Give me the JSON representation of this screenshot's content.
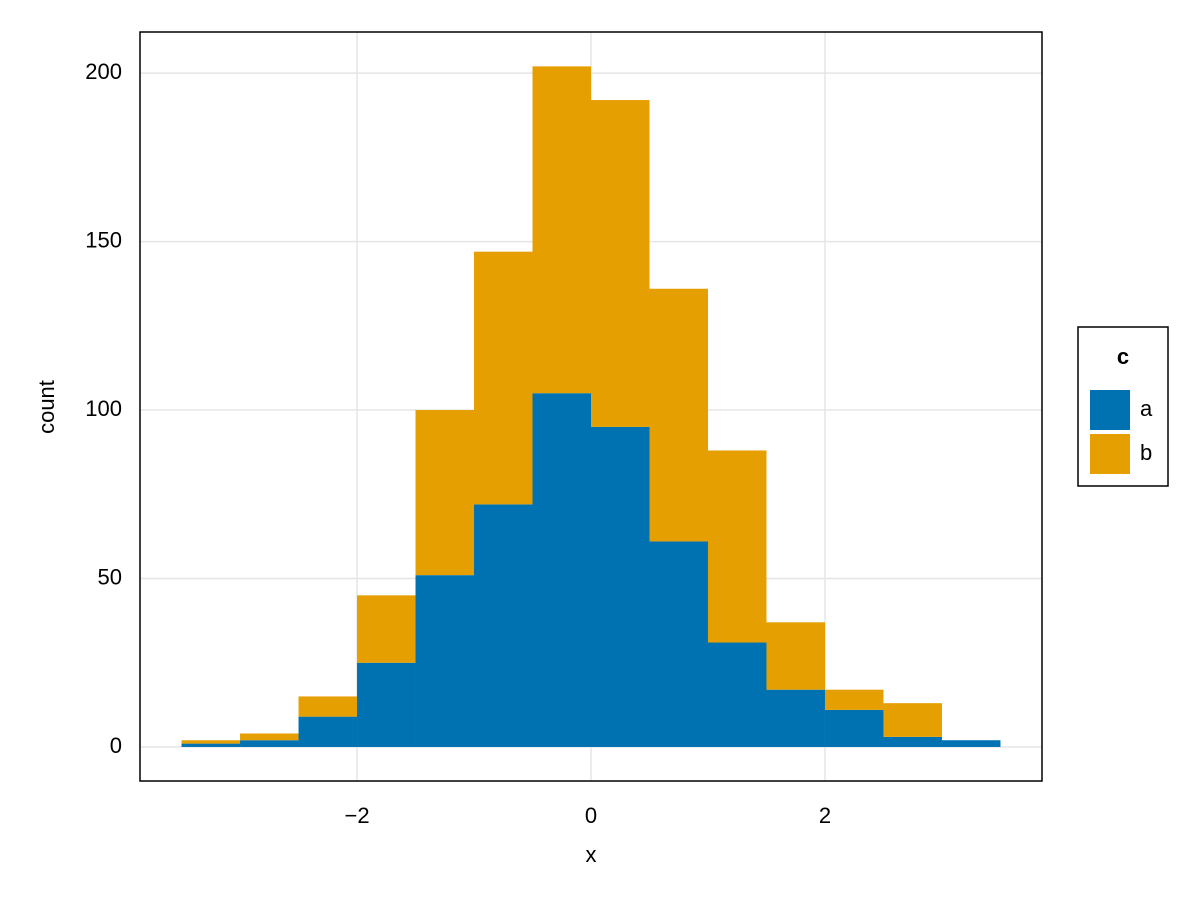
{
  "chart_data": {
    "type": "histogram",
    "stacked": true,
    "xlabel": "x",
    "ylabel": "count",
    "bins": [
      -3.5,
      -3,
      -2.5,
      -2,
      -1.5,
      -1,
      -0.5,
      0,
      0.5,
      1,
      1.5,
      2,
      2.5,
      3,
      3.5
    ],
    "series": [
      {
        "name": "a",
        "color": "#0072b2",
        "values": [
          1,
          2,
          9,
          25,
          51,
          72,
          105,
          95,
          61,
          31,
          17,
          11,
          3,
          2
        ]
      },
      {
        "name": "b",
        "color": "#e69f00",
        "values": [
          1,
          2,
          6,
          20,
          49,
          75,
          97,
          97,
          75,
          57,
          20,
          6,
          10,
          0
        ]
      }
    ],
    "legend_title": "c",
    "legend": "right",
    "xlim": [
      -3.855,
      3.855
    ],
    "xticks": [
      {
        "value": -2,
        "label": "−2"
      },
      0,
      2
    ],
    "ylim": [
      -10.1,
      212.2
    ],
    "yticks": [
      0,
      50,
      100,
      150,
      200
    ],
    "grid": true
  }
}
